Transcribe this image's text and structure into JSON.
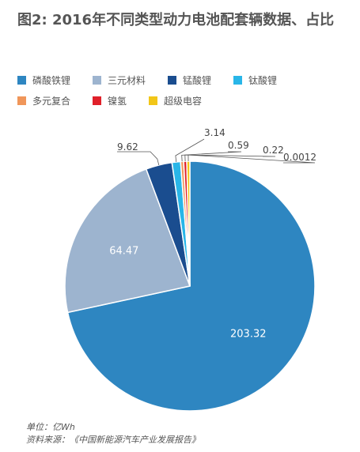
{
  "title": "图2: 2016年不同类型动力电池配套辆数据、占比",
  "footer": {
    "unit": "单位：亿Wh",
    "source": "资料来源：《中国新能源汽车产业发展报告》"
  },
  "chart_data": {
    "type": "pie",
    "title": "图2: 2016年不同类型动力电池配套辆数据、占比",
    "unit": "亿Wh",
    "series": [
      {
        "name": "磷酸铁锂",
        "value": 203.32,
        "label": "203.32",
        "color": "#2e86c1"
      },
      {
        "name": "三元材料",
        "value": 64.47,
        "label": "64.47",
        "color": "#9db4cf"
      },
      {
        "name": "锰酸锂",
        "value": 9.62,
        "label": "9.62",
        "color": "#1a4d8f"
      },
      {
        "name": "钛酸锂",
        "value": 3.14,
        "label": "3.14",
        "color": "#29b6e8"
      },
      {
        "name": "多元复合",
        "value": 0.59,
        "label": "0.59",
        "color": "#f0965a"
      },
      {
        "name": "镍氢",
        "value": 0.22,
        "label": "0.22",
        "color": "#e0202a"
      },
      {
        "name": "超级电容",
        "value": 0.0012,
        "label": "0.0012",
        "color": "#f2c618"
      }
    ],
    "legend_position": "top-left"
  }
}
